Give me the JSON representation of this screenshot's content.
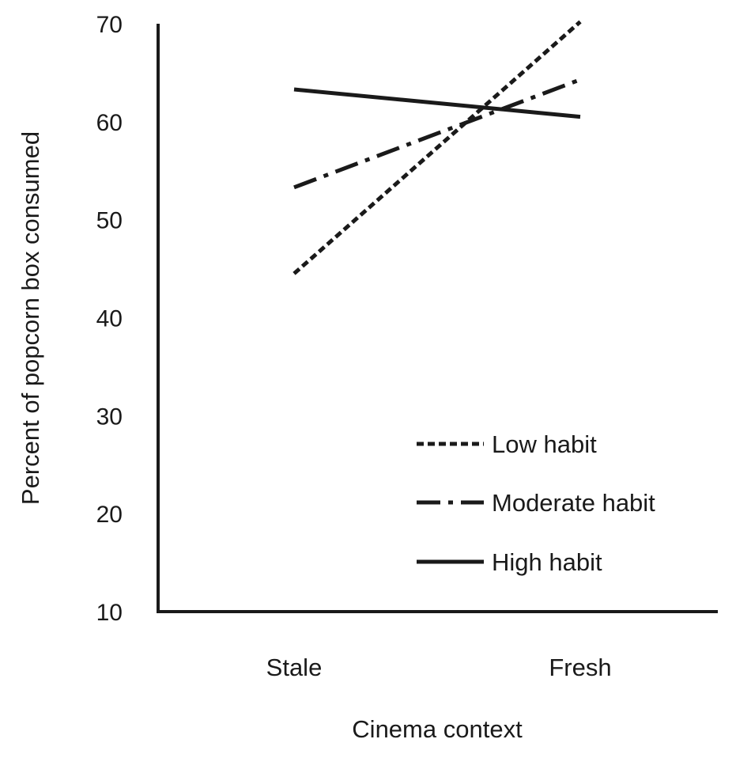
{
  "chart_data": {
    "type": "line",
    "xlabel": "Cinema context",
    "ylabel": "Percent of popcorn box consumed",
    "categories": [
      "Stale",
      "Fresh"
    ],
    "ylim": [
      10,
      70
    ],
    "yticks": [
      10,
      20,
      30,
      40,
      50,
      60,
      70
    ],
    "grid": false,
    "legend_position": "bottom-right",
    "series": [
      {
        "name": "Low habit",
        "values": [
          44.5,
          70.2
        ],
        "style": "dashed",
        "color": "#1a1a1a"
      },
      {
        "name": "Moderate habit",
        "values": [
          53.3,
          64.3
        ],
        "style": "dash-dot",
        "color": "#1a1a1a"
      },
      {
        "name": "High habit",
        "values": [
          63.3,
          60.5
        ],
        "style": "solid",
        "color": "#1a1a1a"
      }
    ]
  }
}
